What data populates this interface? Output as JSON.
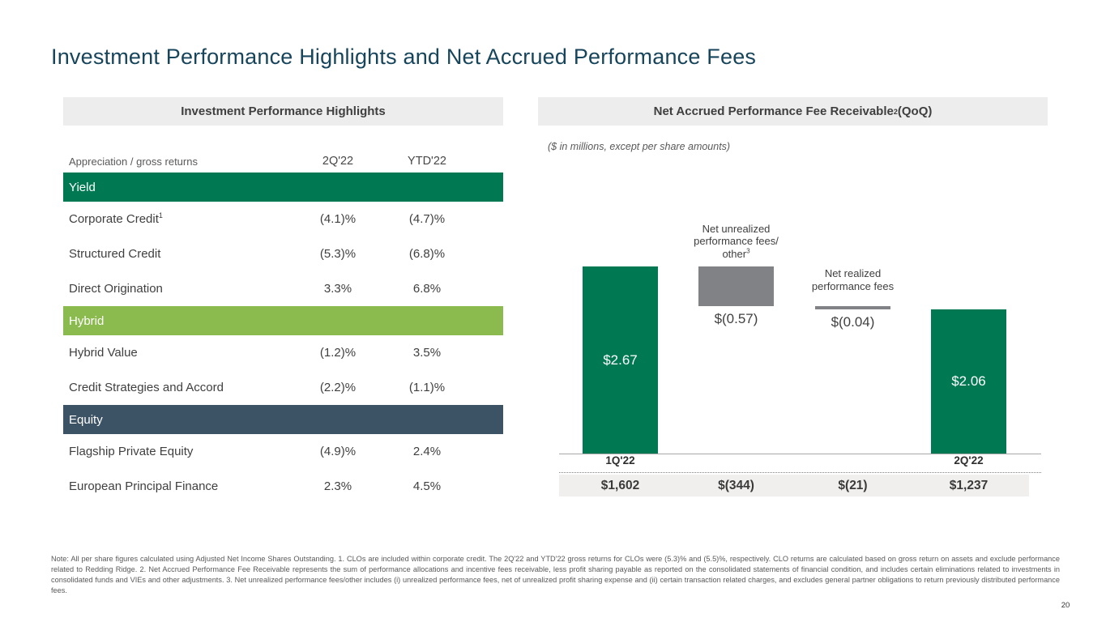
{
  "page": {
    "title": "Investment Performance Highlights and Net Accrued Performance Fees",
    "page_number": "20",
    "footnote": "Note: All per share figures calculated using Adjusted Net Income Shares Outstanding. 1. CLOs are included within corporate credit. The 2Q'22 and YTD'22 gross returns for CLOs were (5.3)% and (5.5)%, respectively. CLO returns are calculated based on gross return on assets and exclude performance related to Redding Ridge. 2. Net Accrued Performance Fee Receivable represents the sum of performance allocations and incentive fees receivable, less profit sharing payable as reported on the consolidated statements of financial condition, and includes certain eliminations related to investments in consolidated funds and VIEs and other adjustments. 3. Net unrealized performance fees/other includes (i) unrealized performance fees, net of unrealized profit sharing expense and (ii) certain transaction related charges, and excludes general partner obligations to return previously distributed performance fees."
  },
  "colors": {
    "title": "#17455c",
    "panel_header_bg": "#ededed",
    "yield_green": "#007952",
    "hybrid_green": "#8bba4f",
    "equity_slate": "#3c5265",
    "bar_green": "#007952",
    "bar_gray": "#808285",
    "totals_row_bg": "#f0efed"
  },
  "left_panel": {
    "header": "Investment Performance Highlights"
  },
  "right_panel": {
    "header_main": "Net Accrued Performance Fee Receivable",
    "header_sup": "2",
    "header_suffix": " (QoQ)",
    "units_note": "($ in millions, except per share amounts)"
  },
  "chart_data": [
    {
      "type": "table",
      "title": "Investment Performance Highlights",
      "columns": [
        "Appreciation / gross returns",
        "2Q'22",
        "YTD'22"
      ],
      "sections": [
        {
          "name": "Yield",
          "color_key": "yield_green",
          "rows": [
            {
              "label": "Corporate Credit",
              "sup": "1",
              "q": "(4.1)%",
              "ytd": "(4.7)%"
            },
            {
              "label": "Structured Credit",
              "q": "(5.3)%",
              "ytd": "(6.8)%"
            },
            {
              "label": "Direct Origination",
              "q": "3.3%",
              "ytd": "6.8%"
            }
          ]
        },
        {
          "name": "Hybrid",
          "color_key": "hybrid_green",
          "rows": [
            {
              "label": "Hybrid Value",
              "q": "(1.2)%",
              "ytd": "3.5%"
            },
            {
              "label": "Credit Strategies and Accord",
              "q": "(2.2)%",
              "ytd": "(1.1)%"
            }
          ]
        },
        {
          "name": "Equity",
          "color_key": "equity_slate",
          "rows": [
            {
              "label": "Flagship Private Equity",
              "q": "(4.9)%",
              "ytd": "2.4%"
            },
            {
              "label": "European Principal Finance",
              "q": "2.3%",
              "ytd": "4.5%"
            }
          ]
        }
      ]
    },
    {
      "type": "bar",
      "subtype": "waterfall",
      "title": "Net Accrued Performance Fee Receivable (QoQ)",
      "units": "$ in millions, except per share amounts",
      "categories": [
        "1Q'22",
        "Net unrealized performance fees/other",
        "Net realized performance fees",
        "2Q'22"
      ],
      "per_share_values": [
        2.67,
        -0.57,
        -0.04,
        2.06
      ],
      "value_labels": [
        "$2.67",
        "$(0.57)",
        "$(0.04)",
        "$2.06"
      ],
      "axis_labels": [
        "1Q'22",
        "",
        "",
        "2Q'22"
      ],
      "totals_millions": [
        1602,
        -344,
        -21,
        1237
      ],
      "totals_labels": [
        "$1,602",
        "$(344)",
        "$(21)",
        "$1,237"
      ],
      "annotations": [
        {
          "bar": 1,
          "lines": [
            "Net unrealized",
            "performance fees/",
            "other"
          ],
          "sup_on_last": "3"
        },
        {
          "bar": 2,
          "lines": [
            "Net realized",
            "performance fees"
          ]
        }
      ],
      "ylim": [
        0,
        2.67
      ],
      "grid": false,
      "legend": false
    }
  ]
}
